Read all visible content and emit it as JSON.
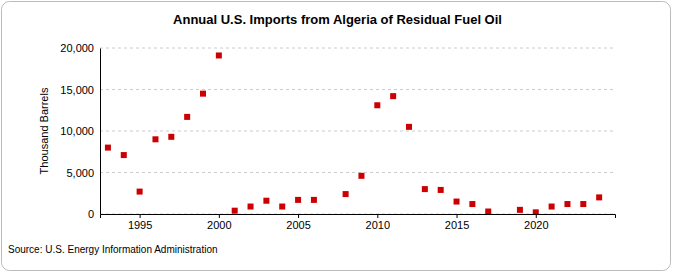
{
  "chart_data": {
    "type": "scatter",
    "title": "Annual U.S. Imports from Algeria of Residual Fuel Oil",
    "ylabel": "Thousand Barrels",
    "source": "Source: U.S. Energy Information Administration",
    "x": [
      1993,
      1994,
      1995,
      1996,
      1997,
      1998,
      1999,
      2000,
      2001,
      2002,
      2003,
      2004,
      2005,
      2006,
      2007,
      2008,
      2009,
      2010,
      2011,
      2012,
      2013,
      2014,
      2015,
      2016,
      2017,
      2018,
      2019,
      2020,
      2021,
      2022,
      2023,
      2024
    ],
    "values": [
      8000,
      7100,
      2700,
      9000,
      9300,
      11700,
      14500,
      19100,
      400,
      900,
      1600,
      900,
      1700,
      1700,
      null,
      2400,
      4600,
      13100,
      14200,
      10500,
      3000,
      2900,
      1500,
      1200,
      300,
      null,
      500,
      200,
      900,
      1200,
      1200,
      2000
    ],
    "color": "#cc0000",
    "marker": "square",
    "xlim": [
      1992.5,
      2025
    ],
    "xticks": [
      1995,
      2000,
      2005,
      2010,
      2015,
      2020
    ],
    "ylim": [
      0,
      20000
    ],
    "yticks": [
      0,
      {
        "value": 5000,
        "label": "5,000"
      },
      {
        "value": 10000,
        "label": "10,000"
      },
      {
        "value": 15000,
        "label": "15,000"
      },
      {
        "value": 20000,
        "label": "20,000"
      }
    ],
    "grid": true
  }
}
